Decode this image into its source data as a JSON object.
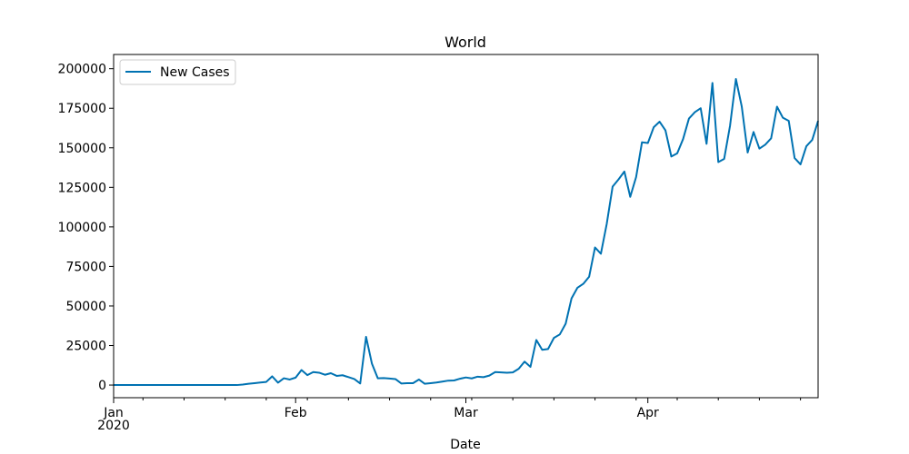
{
  "chart_data": {
    "type": "line",
    "title": "World",
    "xlabel": "Date",
    "ylabel": "",
    "x_start": "2020-01-01",
    "x_end": "2020-04-30",
    "xlim": [
      "2020-01-01",
      "2020-04-30"
    ],
    "ylim": [
      -8000,
      209000
    ],
    "grid": false,
    "legend": "top-left",
    "x_major_ticks": [
      {
        "date": "2020-01-01",
        "label": "Jan",
        "sublabel": "2020"
      },
      {
        "date": "2020-02-01",
        "label": "Feb",
        "sublabel": ""
      },
      {
        "date": "2020-03-01",
        "label": "Mar",
        "sublabel": ""
      },
      {
        "date": "2020-04-01",
        "label": "Apr",
        "sublabel": ""
      }
    ],
    "x_minor_ticks": [
      "2020-01-06",
      "2020-01-13",
      "2020-01-20",
      "2020-01-27",
      "2020-02-03",
      "2020-02-10",
      "2020-02-17",
      "2020-02-24",
      "2020-03-02",
      "2020-03-09",
      "2020-03-16",
      "2020-03-23",
      "2020-03-30",
      "2020-04-06",
      "2020-04-13",
      "2020-04-20",
      "2020-04-27"
    ],
    "y_ticks": [
      {
        "value": 0,
        "label": "0"
      },
      {
        "value": 25000,
        "label": "25000"
      },
      {
        "value": 50000,
        "label": "50000"
      },
      {
        "value": 75000,
        "label": "75000"
      },
      {
        "value": 100000,
        "label": "100000"
      },
      {
        "value": 125000,
        "label": "125000"
      },
      {
        "value": 150000,
        "label": "150000"
      },
      {
        "value": 175000,
        "label": "175000"
      },
      {
        "value": 200000,
        "label": "200000"
      }
    ],
    "series": [
      {
        "name": "New Cases",
        "color": "#0072B2",
        "points": [
          [
            "2020-01-01",
            0
          ],
          [
            "2020-01-02",
            0
          ],
          [
            "2020-01-03",
            0
          ],
          [
            "2020-01-04",
            0
          ],
          [
            "2020-01-05",
            0
          ],
          [
            "2020-01-06",
            0
          ],
          [
            "2020-01-07",
            0
          ],
          [
            "2020-01-08",
            0
          ],
          [
            "2020-01-09",
            0
          ],
          [
            "2020-01-10",
            0
          ],
          [
            "2020-01-11",
            0
          ],
          [
            "2020-01-12",
            0
          ],
          [
            "2020-01-13",
            0
          ],
          [
            "2020-01-14",
            0
          ],
          [
            "2020-01-15",
            0
          ],
          [
            "2020-01-16",
            0
          ],
          [
            "2020-01-17",
            0
          ],
          [
            "2020-01-18",
            0
          ],
          [
            "2020-01-19",
            0
          ],
          [
            "2020-01-20",
            0
          ],
          [
            "2020-01-21",
            0
          ],
          [
            "2020-01-22",
            0
          ],
          [
            "2020-01-23",
            300
          ],
          [
            "2020-01-24",
            800
          ],
          [
            "2020-01-25",
            1200
          ],
          [
            "2020-01-26",
            1600
          ],
          [
            "2020-01-27",
            2000
          ],
          [
            "2020-01-28",
            5500
          ],
          [
            "2020-01-29",
            1500
          ],
          [
            "2020-01-30",
            4300
          ],
          [
            "2020-01-31",
            3500
          ],
          [
            "2020-02-01",
            4700
          ],
          [
            "2020-02-02",
            9500
          ],
          [
            "2020-02-03",
            6300
          ],
          [
            "2020-02-04",
            8200
          ],
          [
            "2020-02-05",
            7800
          ],
          [
            "2020-02-06",
            6500
          ],
          [
            "2020-02-07",
            7500
          ],
          [
            "2020-02-08",
            5800
          ],
          [
            "2020-02-09",
            6200
          ],
          [
            "2020-02-10",
            5000
          ],
          [
            "2020-02-11",
            3800
          ],
          [
            "2020-02-12",
            1000
          ],
          [
            "2020-02-13",
            30500
          ],
          [
            "2020-02-14",
            13500
          ],
          [
            "2020-02-15",
            4300
          ],
          [
            "2020-02-16",
            4400
          ],
          [
            "2020-02-17",
            4100
          ],
          [
            "2020-02-18",
            3800
          ],
          [
            "2020-02-19",
            1000
          ],
          [
            "2020-02-20",
            1200
          ],
          [
            "2020-02-21",
            1200
          ],
          [
            "2020-02-22",
            3500
          ],
          [
            "2020-02-23",
            800
          ],
          [
            "2020-02-24",
            1200
          ],
          [
            "2020-02-25",
            1600
          ],
          [
            "2020-02-26",
            2200
          ],
          [
            "2020-02-27",
            2800
          ],
          [
            "2020-02-28",
            2900
          ],
          [
            "2020-02-29",
            4000
          ],
          [
            "2020-03-01",
            4800
          ],
          [
            "2020-03-02",
            4200
          ],
          [
            "2020-03-03",
            5300
          ],
          [
            "2020-03-04",
            5000
          ],
          [
            "2020-03-05",
            6000
          ],
          [
            "2020-03-06",
            8200
          ],
          [
            "2020-03-07",
            8000
          ],
          [
            "2020-03-08",
            7800
          ],
          [
            "2020-03-09",
            8000
          ],
          [
            "2020-03-10",
            10300
          ],
          [
            "2020-03-11",
            14800
          ],
          [
            "2020-03-12",
            11500
          ],
          [
            "2020-03-13",
            28500
          ],
          [
            "2020-03-14",
            22300
          ],
          [
            "2020-03-15",
            22800
          ],
          [
            "2020-03-16",
            29800
          ],
          [
            "2020-03-17",
            32000
          ],
          [
            "2020-03-18",
            38800
          ],
          [
            "2020-03-19",
            54800
          ],
          [
            "2020-03-20",
            61500
          ],
          [
            "2020-03-21",
            64000
          ],
          [
            "2020-03-22",
            68500
          ],
          [
            "2020-03-23",
            87000
          ],
          [
            "2020-03-24",
            83000
          ],
          [
            "2020-03-25",
            102000
          ],
          [
            "2020-03-26",
            125500
          ],
          [
            "2020-03-27",
            130000
          ],
          [
            "2020-03-28",
            135000
          ],
          [
            "2020-03-29",
            119000
          ],
          [
            "2020-03-30",
            131500
          ],
          [
            "2020-03-31",
            153500
          ],
          [
            "2020-04-01",
            153000
          ],
          [
            "2020-04-02",
            163000
          ],
          [
            "2020-04-03",
            166500
          ],
          [
            "2020-04-04",
            161000
          ],
          [
            "2020-04-05",
            144500
          ],
          [
            "2020-04-06",
            146500
          ],
          [
            "2020-04-07",
            155500
          ],
          [
            "2020-04-08",
            168500
          ],
          [
            "2020-04-09",
            172500
          ],
          [
            "2020-04-10",
            175000
          ],
          [
            "2020-04-11",
            152500
          ],
          [
            "2020-04-12",
            191000
          ],
          [
            "2020-04-13",
            141000
          ],
          [
            "2020-04-14",
            143000
          ],
          [
            "2020-04-15",
            164000
          ],
          [
            "2020-04-16",
            193500
          ],
          [
            "2020-04-17",
            176000
          ],
          [
            "2020-04-18",
            147000
          ],
          [
            "2020-04-19",
            160000
          ],
          [
            "2020-04-20",
            149500
          ],
          [
            "2020-04-21",
            152000
          ],
          [
            "2020-04-22",
            156000
          ],
          [
            "2020-04-23",
            176000
          ],
          [
            "2020-04-24",
            169000
          ],
          [
            "2020-04-25",
            167000
          ],
          [
            "2020-04-26",
            143500
          ],
          [
            "2020-04-27",
            139500
          ],
          [
            "2020-04-28",
            151000
          ],
          [
            "2020-04-29",
            155000
          ],
          [
            "2020-04-30",
            167000
          ]
        ]
      }
    ]
  }
}
